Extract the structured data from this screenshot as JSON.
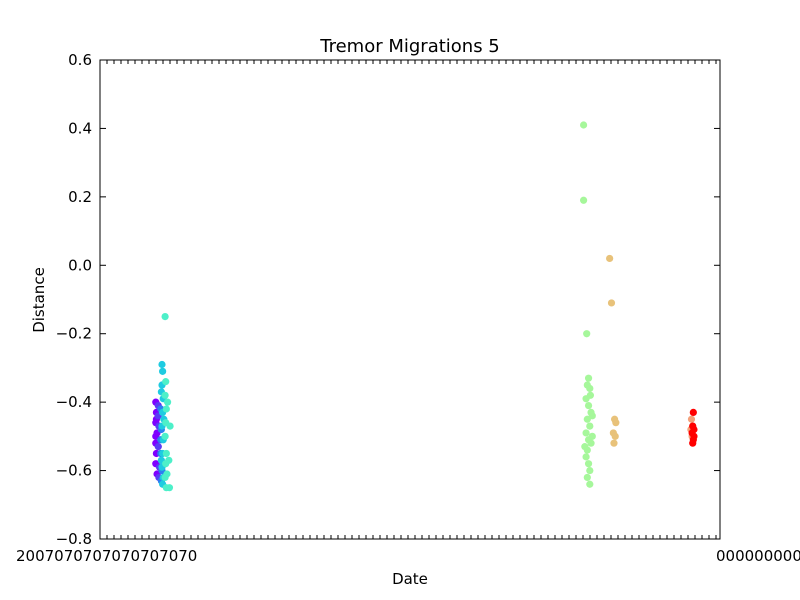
{
  "chart_data": {
    "type": "scatter",
    "title": "Tremor Migrations 5",
    "xlabel": "Date",
    "ylabel": "Distance",
    "ylim": [
      -0.8,
      0.6
    ],
    "yticks": [
      "−0.8",
      "−0.6",
      "−0.4",
      "−0.2",
      "0.0",
      "0.2",
      "0.4",
      "0.6"
    ],
    "xlim": [
      0,
      100
    ],
    "xtick_label_left": "2007070707070707070",
    "xtick_label_right": "0000000000",
    "grid": false,
    "legend": "none",
    "series": [
      {
        "color": "#7f00ff",
        "points": [
          [
            9.0,
            -0.4
          ],
          [
            9.1,
            -0.43
          ],
          [
            9.0,
            -0.46
          ],
          [
            9.2,
            -0.49
          ],
          [
            9.0,
            -0.52
          ],
          [
            9.1,
            -0.55
          ],
          [
            9.0,
            -0.58
          ],
          [
            9.2,
            -0.61
          ],
          [
            9.1,
            -0.45
          ],
          [
            9.0,
            -0.5
          ]
        ]
      },
      {
        "color": "#5a3cf5",
        "points": [
          [
            9.4,
            -0.41
          ],
          [
            9.5,
            -0.47
          ],
          [
            9.4,
            -0.53
          ],
          [
            9.6,
            -0.59
          ],
          [
            9.5,
            -0.62
          ],
          [
            9.4,
            -0.44
          ]
        ]
      },
      {
        "color": "#2c7ff0",
        "points": [
          [
            9.8,
            -0.42
          ],
          [
            9.9,
            -0.48
          ],
          [
            9.8,
            -0.55
          ],
          [
            10.0,
            -0.6
          ],
          [
            9.9,
            -0.63
          ],
          [
            9.8,
            -0.51
          ]
        ]
      },
      {
        "color": "#1ecbe1",
        "points": [
          [
            10.0,
            -0.29
          ],
          [
            10.1,
            -0.31
          ],
          [
            10.0,
            -0.35
          ],
          [
            10.2,
            -0.39
          ],
          [
            10.1,
            -0.43
          ],
          [
            10.0,
            -0.47
          ],
          [
            10.2,
            -0.51
          ],
          [
            10.1,
            -0.55
          ],
          [
            10.0,
            -0.59
          ],
          [
            10.2,
            -0.62
          ],
          [
            10.1,
            -0.64
          ],
          [
            9.9,
            -0.37
          ],
          [
            10.3,
            -0.45
          ],
          [
            9.9,
            -0.57
          ]
        ]
      },
      {
        "color": "#4df0c9",
        "points": [
          [
            10.5,
            -0.15
          ],
          [
            10.6,
            -0.34
          ],
          [
            10.5,
            -0.38
          ],
          [
            10.7,
            -0.42
          ],
          [
            10.6,
            -0.46
          ],
          [
            10.5,
            -0.5
          ],
          [
            10.7,
            -0.55
          ],
          [
            10.6,
            -0.58
          ],
          [
            10.5,
            -0.62
          ],
          [
            10.7,
            -0.65
          ],
          [
            11.3,
            -0.47
          ],
          [
            11.1,
            -0.57
          ],
          [
            10.8,
            -0.61
          ],
          [
            11.2,
            -0.65
          ],
          [
            10.9,
            -0.4
          ]
        ]
      },
      {
        "color": "#a6f79b",
        "points": [
          [
            78.0,
            0.41
          ],
          [
            78.0,
            0.19
          ],
          [
            78.5,
            -0.2
          ],
          [
            78.8,
            -0.33
          ],
          [
            78.6,
            -0.35
          ],
          [
            79.0,
            -0.36
          ],
          [
            78.4,
            -0.39
          ],
          [
            78.8,
            -0.41
          ],
          [
            79.2,
            -0.43
          ],
          [
            78.6,
            -0.45
          ],
          [
            79.0,
            -0.47
          ],
          [
            78.4,
            -0.49
          ],
          [
            78.8,
            -0.51
          ],
          [
            79.2,
            -0.52
          ],
          [
            78.6,
            -0.54
          ],
          [
            78.4,
            -0.56
          ],
          [
            78.8,
            -0.58
          ],
          [
            79.0,
            -0.6
          ],
          [
            78.6,
            -0.62
          ],
          [
            79.0,
            -0.64
          ],
          [
            79.4,
            -0.44
          ],
          [
            79.4,
            -0.5
          ],
          [
            78.2,
            -0.53
          ],
          [
            79.1,
            -0.38
          ]
        ]
      },
      {
        "color": "#e8c27a",
        "points": [
          [
            82.2,
            0.02
          ],
          [
            82.5,
            -0.11
          ],
          [
            83.0,
            -0.45
          ],
          [
            83.2,
            -0.46
          ],
          [
            82.8,
            -0.49
          ],
          [
            83.1,
            -0.5
          ],
          [
            82.9,
            -0.52
          ]
        ]
      },
      {
        "color": "#f4a07a",
        "points": [
          [
            95.4,
            -0.45
          ],
          [
            95.6,
            -0.47
          ],
          [
            95.5,
            -0.5
          ],
          [
            95.3,
            -0.48
          ]
        ]
      },
      {
        "color": "#ff0000",
        "points": [
          [
            95.7,
            -0.43
          ],
          [
            95.6,
            -0.47
          ],
          [
            95.8,
            -0.48
          ],
          [
            95.5,
            -0.49
          ],
          [
            95.7,
            -0.51
          ],
          [
            95.6,
            -0.52
          ],
          [
            95.8,
            -0.5
          ]
        ]
      }
    ]
  }
}
